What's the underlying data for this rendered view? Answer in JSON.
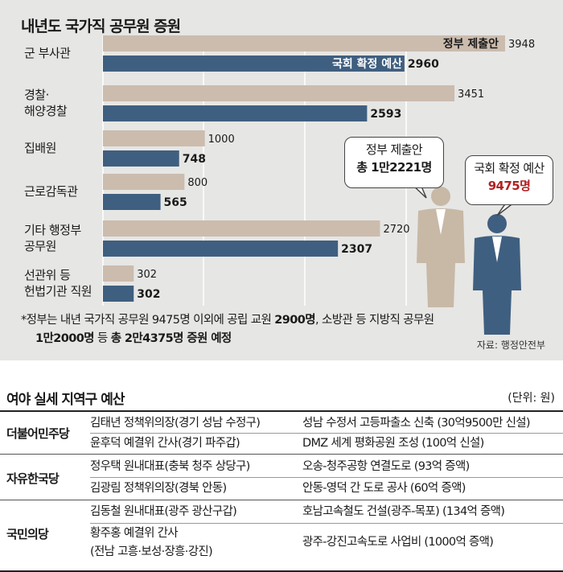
{
  "chart_data": {
    "type": "bar",
    "title": "내년도 국가직 공무원 증원",
    "categories": [
      [
        "군 부사관"
      ],
      [
        "경찰·",
        "해양경찰"
      ],
      [
        "집배원"
      ],
      [
        "근로감독관"
      ],
      [
        "기타 행정부",
        "공무원"
      ],
      [
        "선관위 등",
        "헌법기관 직원"
      ]
    ],
    "series": [
      {
        "name": "정부 제출안",
        "values": [
          3948,
          3451,
          1000,
          800,
          2720,
          302
        ],
        "color": "#cbbcae"
      },
      {
        "name": "국회 확정 예산",
        "values": [
          2960,
          2593,
          748,
          565,
          2307,
          302
        ],
        "color": "#3f5f80"
      }
    ],
    "value_labels_series1": [
      "3948",
      "3451",
      "1000",
      "800",
      "2720",
      "302"
    ],
    "value_labels_series2": [
      "2960",
      "2593",
      "748",
      "565",
      "2307",
      "302"
    ],
    "bubbles": {
      "government": {
        "label": "정부 제출안",
        "value": "총 1만2221명"
      },
      "assembly": {
        "label": "국회 확정 예산",
        "value": "9475명",
        "value_color": "#b22222"
      }
    },
    "footnote": {
      "line1_a": "*정부는 내년 국가직 공무원 9475명 이외에 공립 교원 ",
      "line1_b": "2900명",
      "line1_c": ", 소방관 등 지방직 공무원",
      "line2_a": "1만2000명",
      "line2_b": " 등 ",
      "line2_c": "총 2만4375명 증원 예정"
    },
    "source": "자료: 행정안전부"
  },
  "table": {
    "title": "여야 실세 지역구 예산",
    "unit": "(단위: 원)",
    "groups": [
      {
        "party": "더불어민주당",
        "rows": [
          {
            "person": "김태년 정책위의장(경기 성남 수정구)",
            "project": "성남 수정서 고등파출소 신축 (30억9500만 신설)"
          },
          {
            "person": "윤후덕 예결위 간사(경기 파주갑)",
            "project": "DMZ 세계 평화공원 조성 (100억 신설)"
          }
        ]
      },
      {
        "party": "자유한국당",
        "rows": [
          {
            "person": "정우택 원내대표(충북 청주 상당구)",
            "project": "오송-청주공항 연결도로 (93억 증액)"
          },
          {
            "person": "김광림 정책위의장(경북 안동)",
            "project": "안동-영덕 간 도로 공사 (60억 증액)"
          }
        ]
      },
      {
        "party": "국민의당",
        "rows": [
          {
            "person": "김동철 원내대표(광주 광산구갑)",
            "project": "호남고속철도 건설(광주-목포) (134억 증액)"
          },
          {
            "person": "황주홍 예결위 간사",
            "person2": "(전남 고흥·보성·장흥·강진)",
            "project": "광주-강진고속도로 사업비 (1000억 증액)"
          }
        ]
      }
    ]
  }
}
